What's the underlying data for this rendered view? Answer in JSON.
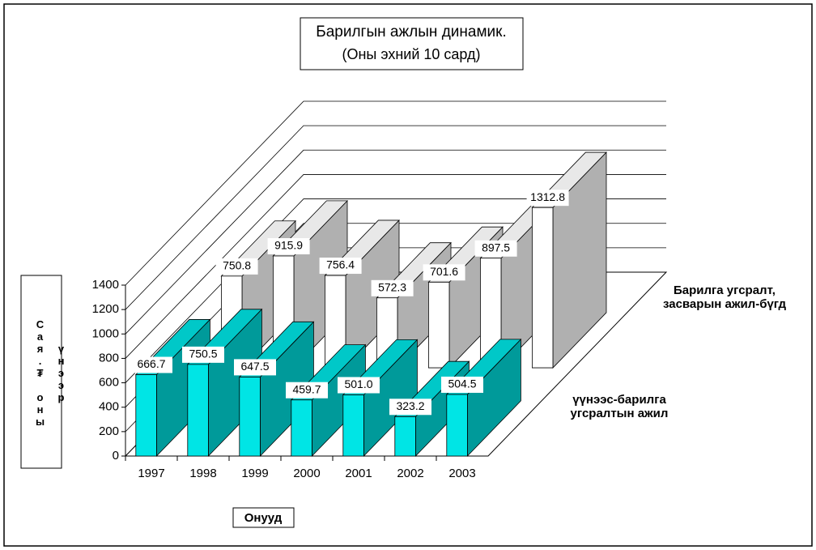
{
  "chart_data": {
    "type": "bar3d",
    "title": "Барилгын ажлын динамик.",
    "subtitle": "(Оны эхний 10 сард)",
    "x_label": "Онууд",
    "y_label": "Сая.₮ оны үнээр",
    "categories": [
      "1997",
      "1998",
      "1999",
      "2000",
      "2001",
      "2002",
      "2003"
    ],
    "series": [
      {
        "name": "үүнээс-барилга угсралтын ажил",
        "color": "#00e5e5",
        "values": [
          666.7,
          750.5,
          647.5,
          459.7,
          501.0,
          323.2,
          504.5
        ],
        "value_labels": [
          "666.7",
          "750.5",
          "647.5",
          "459.7",
          "501.0",
          "323.2",
          "504.5"
        ]
      },
      {
        "name": "Барилга угсралт, засварын ажил-бүгд",
        "color": "#ffffff",
        "values": [
          750.8,
          915.9,
          756.4,
          572.3,
          701.6,
          897.5,
          1312.8
        ],
        "value_labels": [
          "750.8",
          "915.9",
          "756.4",
          "572.3",
          "701.6",
          "897.5",
          "1312.8"
        ]
      }
    ],
    "ylim": [
      0,
      1400
    ],
    "yticks": [
      0,
      200,
      400,
      600,
      800,
      1000,
      1200,
      1400
    ],
    "grid": true
  }
}
